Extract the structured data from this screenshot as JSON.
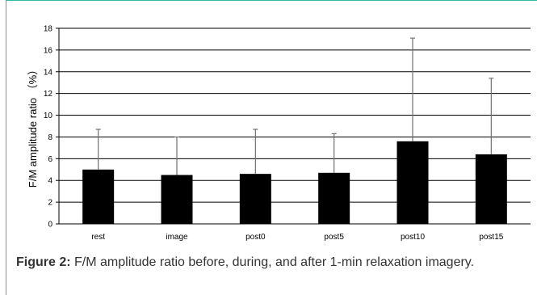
{
  "chart_data": {
    "type": "bar",
    "ylabel": "F/M amplitude ratio （%）",
    "categories": [
      "rest",
      "image",
      "post0",
      "post5",
      "post10",
      "post15"
    ],
    "values": [
      5.0,
      4.5,
      4.6,
      4.7,
      7.6,
      6.4
    ],
    "error_upper": [
      8.7,
      8.0,
      8.7,
      8.3,
      17.1,
      13.4
    ],
    "ylim": [
      0,
      18
    ],
    "yticks": [
      0,
      2,
      4,
      6,
      8,
      10,
      12,
      14,
      16,
      18
    ],
    "grid": true,
    "legend": "none",
    "colors": {
      "bar": "#000000",
      "error_bar": "#707070",
      "gridline": "#000000",
      "frame": "#35b8a8"
    }
  },
  "caption": {
    "label": "Figure 2:",
    "text": "F/M amplitude ratio before, during, and after 1-min relaxation imagery."
  }
}
